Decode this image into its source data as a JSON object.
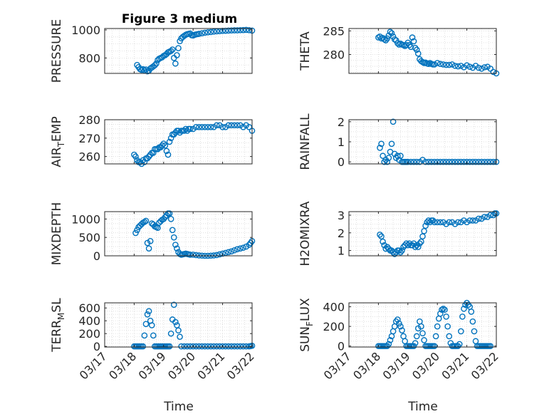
{
  "chart_data": {
    "title": "Figure 3 medium",
    "xlabel": "Time",
    "xtick_labels": [
      "03/17",
      "03/18",
      "03/19",
      "03/20",
      "03/21",
      "03/22"
    ],
    "colors": {
      "marker": "#0072BD",
      "axis": "#262626",
      "grid": "#d9d9d9"
    },
    "subplots": [
      {
        "id": "pressure",
        "type": "scatter",
        "ylabel": "PRESSURE",
        "ylim": [
          690,
          1010
        ],
        "yticks": [
          800,
          1000
        ],
        "ytick_labels": [
          "800",
          "1000"
        ],
        "x": [
          1.1,
          1.15,
          1.2,
          1.25,
          1.3,
          1.35,
          1.4,
          1.45,
          1.5,
          1.55,
          1.6,
          1.65,
          1.7,
          1.75,
          1.8,
          1.85,
          1.9,
          1.95,
          2.0,
          2.05,
          2.1,
          2.15,
          2.2,
          2.25,
          2.3,
          2.35,
          2.4,
          2.45,
          2.5,
          2.55,
          2.6,
          2.65,
          2.7,
          2.75,
          2.8,
          2.85,
          2.9,
          2.95,
          3.0,
          3.05,
          3.1,
          3.15,
          3.2,
          3.3,
          3.4,
          3.5,
          3.6,
          3.7,
          3.8,
          3.9,
          4.0,
          4.1,
          4.2,
          4.3,
          4.4,
          4.5,
          4.6,
          4.7,
          4.8,
          4.9,
          5.0
        ],
        "y": [
          750,
          735,
          720,
          715,
          720,
          712,
          718,
          705,
          710,
          725,
          732,
          740,
          748,
          760,
          785,
          795,
          800,
          805,
          815,
          820,
          828,
          840,
          845,
          850,
          860,
          800,
          760,
          820,
          870,
          920,
          940,
          950,
          958,
          965,
          970,
          972,
          975,
          962,
          960,
          965,
          968,
          970,
          972,
          976,
          980,
          983,
          985,
          988,
          990,
          991,
          993,
          994,
          995,
          996,
          997,
          997,
          998,
          999,
          1000,
          998,
          995
        ]
      },
      {
        "id": "theta",
        "type": "scatter",
        "ylabel": "THETA",
        "ylim": [
          276,
          285.5
        ],
        "yticks": [
          280,
          285
        ],
        "ytick_labels": [
          "280",
          "285"
        ],
        "x": [
          1.0,
          1.05,
          1.1,
          1.15,
          1.2,
          1.25,
          1.3,
          1.35,
          1.4,
          1.45,
          1.5,
          1.55,
          1.6,
          1.65,
          1.7,
          1.75,
          1.8,
          1.85,
          1.9,
          1.95,
          2.0,
          2.05,
          2.1,
          2.15,
          2.2,
          2.25,
          2.3,
          2.35,
          2.4,
          2.45,
          2.5,
          2.55,
          2.6,
          2.65,
          2.7,
          2.75,
          2.8,
          2.85,
          2.9,
          3.0,
          3.1,
          3.2,
          3.3,
          3.4,
          3.5,
          3.6,
          3.7,
          3.8,
          3.9,
          4.0,
          4.1,
          4.2,
          4.3,
          4.4,
          4.5,
          4.6,
          4.7,
          4.8,
          4.9,
          5.0
        ],
        "y": [
          283.6,
          283.8,
          283.4,
          283.5,
          283.2,
          283.0,
          283.4,
          284.0,
          284.8,
          284.5,
          283.8,
          283.2,
          283.0,
          282.4,
          282.1,
          282.3,
          282.1,
          282.0,
          281.8,
          282.0,
          282.5,
          282.0,
          281.6,
          283.6,
          282.8,
          281.4,
          281.0,
          280.2,
          279.0,
          278.6,
          278.4,
          278.2,
          278.3,
          278.1,
          278.0,
          278.2,
          278.0,
          277.9,
          277.9,
          278.2,
          278.0,
          277.9,
          277.8,
          277.8,
          277.9,
          277.6,
          277.5,
          277.6,
          277.3,
          277.7,
          277.4,
          277.2,
          277.6,
          277.2,
          277.0,
          277.3,
          277.4,
          277.0,
          276.3,
          276.0
        ]
      },
      {
        "id": "air-temp",
        "type": "scatter",
        "ylabel": "AIR_TEMP",
        "ylim": [
          256,
          280
        ],
        "yticks": [
          260,
          270,
          280
        ],
        "ytick_labels": [
          "260",
          "270",
          "280"
        ],
        "x": [
          1.0,
          1.05,
          1.1,
          1.15,
          1.2,
          1.25,
          1.3,
          1.35,
          1.4,
          1.45,
          1.5,
          1.55,
          1.6,
          1.65,
          1.7,
          1.75,
          1.8,
          1.85,
          1.9,
          1.95,
          2.0,
          2.05,
          2.1,
          2.15,
          2.2,
          2.25,
          2.3,
          2.35,
          2.4,
          2.45,
          2.5,
          2.55,
          2.6,
          2.65,
          2.7,
          2.75,
          2.8,
          2.85,
          2.9,
          3.0,
          3.1,
          3.2,
          3.3,
          3.4,
          3.5,
          3.6,
          3.7,
          3.8,
          3.9,
          4.0,
          4.1,
          4.2,
          4.3,
          4.4,
          4.5,
          4.6,
          4.7,
          4.8,
          4.9,
          5.0
        ],
        "y": [
          261,
          260,
          258,
          257,
          257,
          256,
          258,
          257,
          259,
          259,
          260,
          261,
          262,
          262,
          264,
          264,
          264,
          265,
          265,
          266,
          267,
          266,
          263,
          261,
          268,
          270,
          272,
          272,
          273,
          274,
          274,
          273,
          274,
          274,
          274,
          275,
          274,
          275,
          275,
          275,
          276,
          276,
          276,
          276,
          276,
          276,
          276,
          277,
          277,
          276,
          276,
          277,
          277,
          277,
          277,
          277,
          276,
          277,
          276,
          274
        ]
      },
      {
        "id": "rainfall",
        "type": "scatter",
        "ylabel": "RAINFALL",
        "ylim": [
          -0.1,
          2.1
        ],
        "yticks": [
          0,
          1,
          2
        ],
        "ytick_labels": [
          "0",
          "1",
          "2"
        ],
        "x": [
          1.05,
          1.1,
          1.15,
          1.2,
          1.25,
          1.3,
          1.35,
          1.4,
          1.45,
          1.5,
          1.55,
          1.6,
          1.65,
          1.7,
          1.75,
          1.8,
          1.85,
          1.9,
          1.95,
          2.0,
          2.1,
          2.2,
          2.3,
          2.4,
          2.5,
          2.6,
          2.7,
          2.8,
          2.9,
          3.0,
          3.1,
          3.2,
          3.3,
          3.4,
          3.5,
          3.6,
          3.7,
          3.8,
          3.9,
          4.0,
          4.1,
          4.2,
          4.3,
          4.4,
          4.5,
          4.6,
          4.7,
          4.8,
          4.9,
          5.0
        ],
        "y": [
          0.7,
          0.9,
          0.3,
          0.0,
          0.1,
          0.0,
          0.2,
          0.5,
          0.9,
          2.0,
          0.4,
          0.2,
          0.3,
          0.1,
          0.3,
          0.0,
          0.0,
          0.0,
          0.0,
          0.0,
          0.0,
          0.0,
          0.0,
          0.0,
          0.1,
          0.0,
          0.0,
          0.0,
          0.0,
          0.0,
          0.0,
          0.0,
          0.0,
          0.0,
          0.0,
          0.0,
          0.0,
          0.0,
          0.0,
          0.0,
          0.0,
          0.0,
          0.0,
          0.0,
          0.0,
          0.0,
          0.0,
          0.0,
          0.0,
          0.0
        ]
      },
      {
        "id": "mixdepth",
        "type": "scatter",
        "ylabel": "MIXDEPTH",
        "ylim": [
          0,
          1200
        ],
        "yticks": [
          0,
          500,
          1000
        ],
        "ytick_labels": [
          "0",
          "500",
          "1000"
        ],
        "x": [
          1.05,
          1.1,
          1.15,
          1.2,
          1.25,
          1.3,
          1.35,
          1.4,
          1.45,
          1.5,
          1.55,
          1.6,
          1.65,
          1.7,
          1.75,
          1.8,
          1.85,
          1.9,
          1.95,
          2.0,
          2.05,
          2.1,
          2.15,
          2.2,
          2.25,
          2.3,
          2.35,
          2.4,
          2.45,
          2.5,
          2.55,
          2.6,
          2.65,
          2.7,
          2.75,
          2.8,
          2.85,
          2.9,
          3.0,
          3.1,
          3.2,
          3.3,
          3.4,
          3.5,
          3.6,
          3.7,
          3.8,
          3.9,
          4.0,
          4.1,
          4.2,
          4.3,
          4.4,
          4.5,
          4.6,
          4.7,
          4.8,
          4.9,
          4.95,
          5.0
        ],
        "y": [
          620,
          700,
          780,
          820,
          860,
          900,
          920,
          950,
          350,
          200,
          400,
          880,
          850,
          800,
          780,
          760,
          900,
          940,
          980,
          1000,
          1050,
          1100,
          1150,
          1150,
          1000,
          700,
          500,
          300,
          200,
          100,
          50,
          30,
          40,
          50,
          60,
          50,
          40,
          30,
          30,
          20,
          10,
          5,
          0,
          0,
          5,
          10,
          20,
          40,
          60,
          80,
          100,
          120,
          150,
          180,
          200,
          220,
          250,
          300,
          350,
          400
        ]
      },
      {
        "id": "h2omixra",
        "type": "scatter",
        "ylabel": "H2OMIXRA",
        "ylim": [
          0.7,
          3.2
        ],
        "yticks": [
          1,
          2,
          3
        ],
        "ytick_labels": [
          "1",
          "2",
          "3"
        ],
        "x": [
          1.05,
          1.1,
          1.15,
          1.2,
          1.25,
          1.3,
          1.35,
          1.4,
          1.45,
          1.5,
          1.55,
          1.6,
          1.65,
          1.7,
          1.75,
          1.8,
          1.85,
          1.9,
          1.95,
          2.0,
          2.05,
          2.1,
          2.15,
          2.2,
          2.25,
          2.3,
          2.35,
          2.4,
          2.45,
          2.5,
          2.55,
          2.6,
          2.65,
          2.7,
          2.75,
          2.8,
          2.85,
          2.9,
          3.0,
          3.1,
          3.2,
          3.3,
          3.4,
          3.5,
          3.6,
          3.7,
          3.8,
          3.9,
          4.0,
          4.1,
          4.2,
          4.3,
          4.4,
          4.5,
          4.6,
          4.7,
          4.8,
          4.9,
          4.95,
          5.0
        ],
        "y": [
          1.9,
          1.8,
          1.5,
          1.3,
          1.1,
          1.2,
          1.1,
          1.0,
          1.0,
          0.9,
          0.8,
          0.9,
          1.0,
          1.0,
          0.9,
          1.0,
          1.2,
          1.3,
          1.4,
          1.3,
          1.4,
          1.3,
          1.3,
          1.4,
          1.2,
          1.3,
          1.2,
          1.4,
          1.5,
          1.8,
          2.1,
          2.4,
          2.6,
          2.7,
          2.6,
          2.7,
          2.7,
          2.6,
          2.6,
          2.6,
          2.6,
          2.5,
          2.6,
          2.6,
          2.5,
          2.6,
          2.6,
          2.7,
          2.6,
          2.7,
          2.7,
          2.7,
          2.8,
          2.8,
          2.9,
          2.9,
          3.0,
          3.0,
          3.1,
          3.1
        ]
      },
      {
        "id": "terr-msl",
        "type": "scatter",
        "ylabel": "TERR_MSL",
        "ylim": [
          -10,
          680
        ],
        "yticks": [
          0,
          200,
          400,
          600
        ],
        "ytick_labels": [
          "0",
          "200",
          "400",
          "600"
        ],
        "x": [
          1.0,
          1.05,
          1.1,
          1.15,
          1.2,
          1.25,
          1.3,
          1.35,
          1.4,
          1.45,
          1.5,
          1.55,
          1.6,
          1.65,
          1.7,
          1.75,
          1.8,
          1.85,
          1.9,
          1.95,
          2.0,
          2.05,
          2.1,
          2.15,
          2.2,
          2.25,
          2.3,
          2.35,
          2.4,
          2.45,
          2.5,
          2.55,
          2.6,
          2.7,
          2.8,
          2.9,
          3.0,
          3.1,
          3.2,
          3.3,
          3.4,
          3.5,
          3.6,
          3.7,
          3.8,
          3.9,
          4.0,
          4.1,
          4.2,
          4.3,
          4.4,
          4.5,
          4.6,
          4.7,
          4.8,
          4.9,
          4.95,
          5.0
        ],
        "y": [
          0,
          0,
          0,
          0,
          0,
          0,
          0,
          170,
          350,
          500,
          550,
          400,
          330,
          170,
          0,
          0,
          0,
          0,
          0,
          0,
          0,
          0,
          0,
          0,
          0,
          200,
          420,
          650,
          380,
          330,
          250,
          150,
          0,
          0,
          0,
          0,
          0,
          0,
          0,
          0,
          0,
          0,
          0,
          0,
          0,
          0,
          0,
          0,
          0,
          0,
          0,
          0,
          0,
          0,
          0,
          0,
          5,
          10
        ]
      },
      {
        "id": "sun-flux",
        "type": "scatter",
        "ylabel": "SUN_FLUX",
        "ylim": [
          -10,
          440
        ],
        "yticks": [
          0,
          200,
          400
        ],
        "ytick_labels": [
          "0",
          "200",
          "400"
        ],
        "x": [
          1.0,
          1.05,
          1.1,
          1.15,
          1.2,
          1.25,
          1.3,
          1.35,
          1.4,
          1.45,
          1.5,
          1.55,
          1.6,
          1.65,
          1.7,
          1.75,
          1.8,
          1.85,
          1.9,
          1.95,
          2.0,
          2.05,
          2.1,
          2.15,
          2.2,
          2.25,
          2.3,
          2.35,
          2.4,
          2.45,
          2.5,
          2.55,
          2.6,
          2.65,
          2.7,
          2.75,
          2.8,
          2.85,
          2.9,
          2.95,
          3.0,
          3.05,
          3.1,
          3.15,
          3.2,
          3.25,
          3.3,
          3.35,
          3.4,
          3.45,
          3.5,
          3.55,
          3.6,
          3.65,
          3.7,
          3.75,
          3.8,
          3.85,
          3.9,
          3.95,
          4.0,
          4.05,
          4.1,
          4.15,
          4.2,
          4.25,
          4.3,
          4.35,
          4.4,
          4.45,
          4.5,
          4.55,
          4.6,
          4.65,
          4.7,
          4.75,
          4.8
        ],
        "y": [
          0,
          0,
          0,
          0,
          0,
          0,
          0,
          20,
          60,
          100,
          150,
          200,
          250,
          270,
          230,
          200,
          160,
          100,
          50,
          0,
          0,
          0,
          0,
          0,
          0,
          30,
          100,
          180,
          250,
          200,
          130,
          60,
          0,
          0,
          0,
          0,
          0,
          0,
          0,
          100,
          200,
          280,
          330,
          370,
          380,
          370,
          300,
          200,
          100,
          30,
          0,
          0,
          0,
          0,
          0,
          20,
          150,
          300,
          380,
          420,
          440,
          420,
          400,
          350,
          250,
          150,
          50,
          0,
          0,
          0,
          0,
          0,
          0,
          0,
          0,
          0,
          0
        ]
      }
    ]
  }
}
